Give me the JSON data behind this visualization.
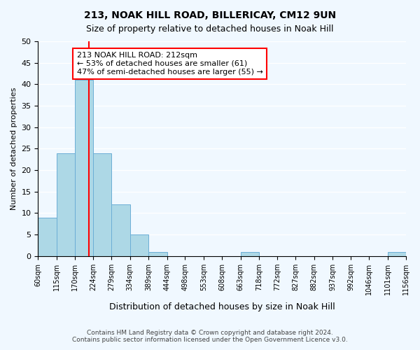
{
  "title1": "213, NOAK HILL ROAD, BILLERICAY, CM12 9UN",
  "title2": "Size of property relative to detached houses in Noak Hill",
  "xlabel": "Distribution of detached houses by size in Noak Hill",
  "ylabel": "Number of detached properties",
  "bin_edges": [
    60,
    115,
    170,
    224,
    279,
    334,
    389,
    444,
    498,
    553,
    608,
    663,
    718,
    772,
    827,
    882,
    937,
    992,
    1046,
    1101,
    1156
  ],
  "bin_labels": [
    "60sqm",
    "115sqm",
    "170sqm",
    "224sqm",
    "279sqm",
    "334sqm",
    "389sqm",
    "444sqm",
    "498sqm",
    "553sqm",
    "608sqm",
    "663sqm",
    "718sqm",
    "772sqm",
    "827sqm",
    "882sqm",
    "937sqm",
    "992sqm",
    "1046sqm",
    "1101sqm",
    "1156sqm"
  ],
  "counts": [
    9,
    24,
    41,
    24,
    12,
    5,
    1,
    0,
    0,
    0,
    0,
    1,
    0,
    0,
    0,
    0,
    0,
    0,
    0,
    1
  ],
  "bar_color": "#add8e6",
  "bar_edgecolor": "#6baed6",
  "property_line_x": 212,
  "property_line_color": "red",
  "annotation_title": "213 NOAK HILL ROAD: 212sqm",
  "annotation_line1": "← 53% of detached houses are smaller (61)",
  "annotation_line2": "47% of semi-detached houses are larger (55) →",
  "annotation_box_color": "white",
  "annotation_box_edgecolor": "red",
  "ylim": [
    0,
    50
  ],
  "yticks": [
    0,
    5,
    10,
    15,
    20,
    25,
    30,
    35,
    40,
    45,
    50
  ],
  "footer1": "Contains HM Land Registry data © Crown copyright and database right 2024.",
  "footer2": "Contains public sector information licensed under the Open Government Licence v3.0.",
  "background_color": "#f0f8ff"
}
